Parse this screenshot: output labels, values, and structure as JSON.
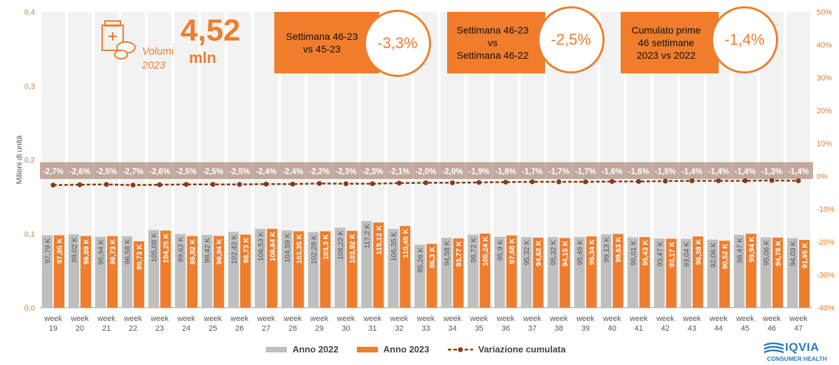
{
  "chart_data": {
    "type": "bar",
    "y_axis_title": "Milioni di unità",
    "y_left": {
      "min": 0,
      "max": 0.4,
      "ticks": [
        "0,0",
        "0,1",
        "0,2",
        "0,3",
        "0,4"
      ]
    },
    "y_right": {
      "min": -40,
      "max": 50,
      "ticks": [
        "-40%",
        "-30%",
        "-20%",
        "-10%",
        "0%",
        "10%",
        "20%",
        "30%",
        "40%",
        "50%"
      ]
    },
    "categories": [
      "19",
      "20",
      "21",
      "22",
      "23",
      "24",
      "25",
      "26",
      "27",
      "28",
      "29",
      "30",
      "31",
      "32",
      "33",
      "34",
      "35",
      "36",
      "37",
      "38",
      "39",
      "40",
      "41",
      "42",
      "43",
      "44",
      "45",
      "46",
      "47"
    ],
    "category_prefix": "week",
    "series": [
      {
        "name": "Anno 2022",
        "color": "#bfbfbf",
        "values": [
          0.09779,
          0.09902,
          0.09594,
          0.09658,
          0.10508,
          0.09962,
          0.09842,
          0.10242,
          0.10653,
          0.10459,
          0.10228,
          0.10822,
          0.1172,
          0.10635,
          0.08526,
          0.09458,
          0.09872,
          0.0959,
          0.09532,
          0.09532,
          0.09548,
          0.09913,
          0.09501,
          0.09347,
          0.09304,
          0.09206,
          0.09847,
          0.09506,
          0.09403
        ],
        "labels": [
          "97,79 K",
          "99,02 K",
          "95,94 K",
          "96,58 K",
          "105,08 K",
          "99,62 K",
          "98,42 K",
          "102,42 K",
          "106,53 K",
          "104,59 K",
          "102,28 K",
          "108,22 K",
          "117,2 K",
          "106,35 K",
          "85,26 K",
          "94,58 K",
          "98,72 K",
          "95,9 K",
          "95,32 K",
          "95,32 K",
          "95,48 K",
          "99,13 K",
          "95,01 K",
          "93,47 K",
          "93,04 K",
          "92,06 K",
          "98,47 K",
          "95,06 K",
          "94,03 K"
        ]
      },
      {
        "name": "Anno 2023",
        "color": "#ef7d2c",
        "values": [
          0.09785,
          0.09689,
          0.09673,
          0.08973,
          0.10425,
          0.09682,
          0.09694,
          0.09873,
          0.10664,
          0.10335,
          0.1033,
          0.10392,
          0.11512,
          0.11045,
          0.0863,
          0.09377,
          0.10024,
          0.09768,
          0.09462,
          0.09415,
          0.09634,
          0.09963,
          0.09543,
          0.09317,
          0.09638,
          0.09052,
          0.09994,
          0.09478,
          0.09165
        ],
        "labels": [
          "97,85 K",
          "96,89 K",
          "96,73 K",
          "89,73 K",
          "104,25 K",
          "96,82 K",
          "96,94 K",
          "98,73 K",
          "106,64 K",
          "103,35 K",
          "103,3 K",
          "103,92 K",
          "115,12 K",
          "110,45 K",
          "86,3 K",
          "93,77 K",
          "100,24 K",
          "97,68 K",
          "94,62 K",
          "94,15 K",
          "96,34 K",
          "99,63 K",
          "95,43 K",
          "93,17 K",
          "96,38 K",
          "90,52 K",
          "99,94 K",
          "94,78 K",
          "91,65 K"
        ]
      },
      {
        "name": "Variazione cumulata",
        "color": "#8b3a12",
        "type": "line",
        "values": [
          -2.7,
          -2.6,
          -2.5,
          -2.7,
          -2.6,
          -2.5,
          -2.5,
          -2.5,
          -2.4,
          -2.4,
          -2.2,
          -2.3,
          -2.3,
          -2.1,
          -2.0,
          -2.0,
          -1.9,
          -1.8,
          -1.7,
          -1.7,
          -1.7,
          -1.6,
          -1.6,
          -1.5,
          -1.4,
          -1.4,
          -1.4,
          -1.3,
          -1.4
        ],
        "labels": [
          "-2,7%",
          "-2,6%",
          "-2,5%",
          "-2,7%",
          "-2,6%",
          "-2,5%",
          "-2,5%",
          "-2,5%",
          "-2,4%",
          "-2,4%",
          "-2,2%",
          "-2,3%",
          "-2,3%",
          "-2,1%",
          "-2,0%",
          "-2,0%",
          "-1,9%",
          "-1,8%",
          "-1,7%",
          "-1,7%",
          "-1,7%",
          "-1,6%",
          "-1,6%",
          "-1,5%",
          "-1,4%",
          "-1,4%",
          "-1,4%",
          "-1,3%",
          "-1,4%"
        ]
      }
    ],
    "legend_position": "bottom"
  },
  "kpis": {
    "volume_number": "4,52",
    "volume_unit": "mln",
    "volume_label_1": "Volumi",
    "volume_label_2": "2023",
    "box1_l1": "Settimana 46-23",
    "box1_l2": "vs 45-23",
    "box1_value": "-3,3%",
    "box2_l1": "Settimana 46-23",
    "box2_l2": "vs",
    "box2_l3": "Settimana 46-22",
    "box2_value": "-2,5%",
    "box3_l1": "Cumulato prime",
    "box3_l2": "46 settimane",
    "box3_l3": "2023 vs 2022",
    "box3_value": "-1,4%"
  },
  "legend": {
    "item1": "Anno 2022",
    "item2": "Anno 2023",
    "item3": "Variazione cumulata"
  },
  "logo": {
    "name": "IQVIA",
    "sub": "CONSUMER HEALTH",
    "color": "#2a7ac0"
  },
  "colors": {
    "accent": "#ef7d2c",
    "gray": "#bfbfbf",
    "line": "#8b3a12"
  }
}
